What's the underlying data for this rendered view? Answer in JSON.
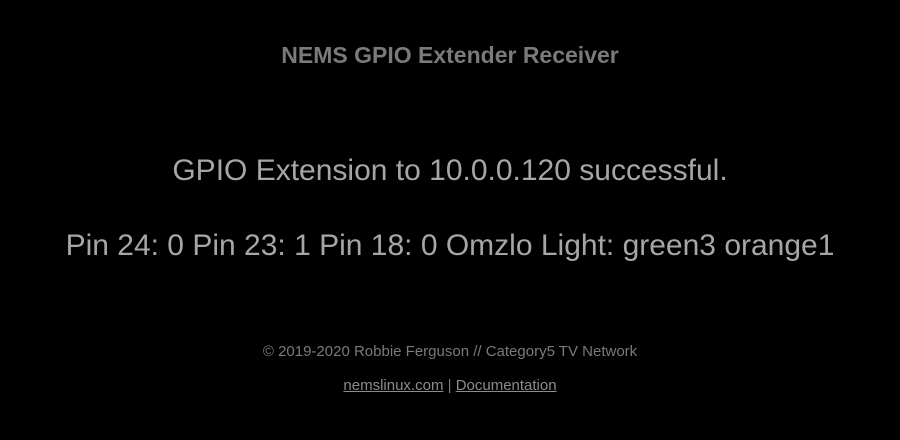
{
  "header": {
    "title": "NEMS GPIO Extender Receiver"
  },
  "main": {
    "status_message": "GPIO Extension to 10.0.0.120 successful.",
    "pin_status": "Pin 24: 0 Pin 23: 1 Pin 18: 0 Omzlo Light: green3 orange1"
  },
  "footer": {
    "copyright": "© 2019-2020 Robbie Ferguson // Category5 TV Network",
    "links": [
      {
        "label": "nemslinux.com"
      },
      {
        "label": "Documentation"
      }
    ],
    "separator": " | "
  },
  "colors": {
    "background": "#000000",
    "title": "#7a7a7a",
    "body_text": "#a6a6a6",
    "footer_text": "#7a7a7a"
  }
}
